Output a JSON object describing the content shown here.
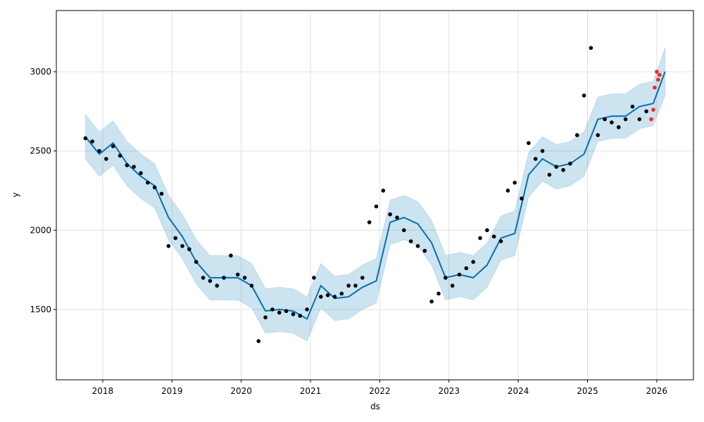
{
  "chart_data": {
    "type": "scatter",
    "xlabel": "ds",
    "ylabel": "y",
    "xlim": [
      2017.33,
      2026.53
    ],
    "ylim": [
      1056,
      3386
    ],
    "xticks": [
      2018,
      2019,
      2020,
      2021,
      2022,
      2023,
      2024,
      2025,
      2026
    ],
    "yticks": [
      1500,
      2000,
      2500,
      3000
    ],
    "grid": true,
    "band": {
      "color": "#0072B2",
      "x": [
        2017.75,
        2017.95,
        2018.15,
        2018.35,
        2018.55,
        2018.75,
        2018.95,
        2019.15,
        2019.35,
        2019.55,
        2019.75,
        2019.95,
        2020.15,
        2020.35,
        2020.55,
        2020.75,
        2020.95,
        2021.15,
        2021.35,
        2021.55,
        2021.75,
        2021.95,
        2022.15,
        2022.35,
        2022.55,
        2022.75,
        2022.95,
        2023.15,
        2023.35,
        2023.55,
        2023.75,
        2023.95,
        2024.15,
        2024.35,
        2024.55,
        2024.75,
        2024.95,
        2025.15,
        2025.35,
        2025.55,
        2025.75,
        2025.95,
        2026.12
      ],
      "lower": [
        2450,
        2340,
        2410,
        2280,
        2200,
        2140,
        1940,
        1820,
        1660,
        1560,
        1560,
        1560,
        1510,
        1350,
        1360,
        1350,
        1300,
        1510,
        1430,
        1440,
        1500,
        1540,
        1910,
        1940,
        1900,
        1780,
        1560,
        1580,
        1560,
        1640,
        1810,
        1840,
        2210,
        2310,
        2260,
        2280,
        2340,
        2560,
        2580,
        2580,
        2640,
        2660,
        2850
      ],
      "upper": [
        2730,
        2620,
        2690,
        2560,
        2480,
        2420,
        2220,
        2100,
        1940,
        1840,
        1840,
        1840,
        1790,
        1630,
        1640,
        1630,
        1580,
        1790,
        1710,
        1720,
        1780,
        1820,
        2190,
        2220,
        2180,
        2060,
        1840,
        1860,
        1840,
        1920,
        2090,
        2120,
        2490,
        2590,
        2540,
        2560,
        2620,
        2840,
        2860,
        2860,
        2920,
        2940,
        3150
      ]
    },
    "series": [
      {
        "style": "line",
        "color": "#0072B2",
        "x": [
          2017.75,
          2017.95,
          2018.15,
          2018.35,
          2018.55,
          2018.75,
          2018.95,
          2019.15,
          2019.35,
          2019.55,
          2019.75,
          2019.95,
          2020.15,
          2020.35,
          2020.55,
          2020.75,
          2020.95,
          2021.15,
          2021.35,
          2021.55,
          2021.75,
          2021.95,
          2022.15,
          2022.35,
          2022.55,
          2022.75,
          2022.95,
          2023.15,
          2023.35,
          2023.55,
          2023.75,
          2023.95,
          2024.15,
          2024.35,
          2024.55,
          2024.75,
          2024.95,
          2025.15,
          2025.35,
          2025.55,
          2025.75,
          2025.95,
          2026.12
        ],
        "values": [
          2590,
          2480,
          2550,
          2420,
          2340,
          2280,
          2080,
          1960,
          1800,
          1700,
          1700,
          1700,
          1650,
          1490,
          1500,
          1490,
          1440,
          1650,
          1570,
          1580,
          1640,
          1680,
          2050,
          2080,
          2040,
          1920,
          1700,
          1720,
          1700,
          1780,
          1950,
          1980,
          2350,
          2450,
          2400,
          2420,
          2480,
          2700,
          2720,
          2720,
          2780,
          2800,
          3000
        ]
      },
      {
        "style": "dots",
        "color": "#000000",
        "x": [
          2017.75,
          2017.85,
          2017.95,
          2018.05,
          2018.15,
          2018.25,
          2018.35,
          2018.45,
          2018.55,
          2018.65,
          2018.75,
          2018.85,
          2018.95,
          2019.05,
          2019.15,
          2019.25,
          2019.35,
          2019.45,
          2019.55,
          2019.65,
          2019.75,
          2019.85,
          2019.95,
          2020.05,
          2020.15,
          2020.25,
          2020.35,
          2020.45,
          2020.55,
          2020.65,
          2020.75,
          2020.85,
          2020.95,
          2021.05,
          2021.15,
          2021.25,
          2021.35,
          2021.45,
          2021.55,
          2021.65,
          2021.75,
          2021.85,
          2021.95,
          2022.05,
          2022.15,
          2022.25,
          2022.35,
          2022.45,
          2022.55,
          2022.65,
          2022.75,
          2022.85,
          2022.95,
          2023.05,
          2023.15,
          2023.25,
          2023.35,
          2023.45,
          2023.55,
          2023.65,
          2023.75,
          2023.85,
          2023.95,
          2024.05,
          2024.15,
          2024.25,
          2024.35,
          2024.45,
          2024.55,
          2024.65,
          2024.75,
          2024.85,
          2024.95,
          2025.05,
          2025.15,
          2025.25,
          2025.35,
          2025.45,
          2025.55,
          2025.65,
          2025.75,
          2025.85
        ],
        "values": [
          2580,
          2560,
          2500,
          2450,
          2530,
          2470,
          2410,
          2400,
          2360,
          2300,
          2270,
          2230,
          1900,
          1950,
          1900,
          1880,
          1800,
          1700,
          1680,
          1650,
          1700,
          1840,
          1720,
          1700,
          1650,
          1300,
          1450,
          1500,
          1480,
          1490,
          1470,
          1460,
          1500,
          1700,
          1580,
          1590,
          1580,
          1600,
          1650,
          1650,
          1700,
          2050,
          2150,
          2250,
          2100,
          2080,
          2000,
          1930,
          1900,
          1870,
          1550,
          1600,
          1700,
          1650,
          1720,
          1760,
          1800,
          1950,
          2000,
          1960,
          1930,
          2250,
          2300,
          2200,
          2550,
          2450,
          2500,
          2350,
          2400,
          2380,
          2420,
          2600,
          2850,
          3150,
          2600,
          2700,
          2680,
          2650,
          2700,
          2780,
          2700,
          2750
        ]
      },
      {
        "style": "dots",
        "color": "#ff2020",
        "x": [
          2025.92,
          2025.95,
          2025.97,
          2026.0,
          2026.02,
          2026.04
        ],
        "values": [
          2700,
          2760,
          2900,
          3000,
          2950,
          2980
        ]
      }
    ]
  }
}
